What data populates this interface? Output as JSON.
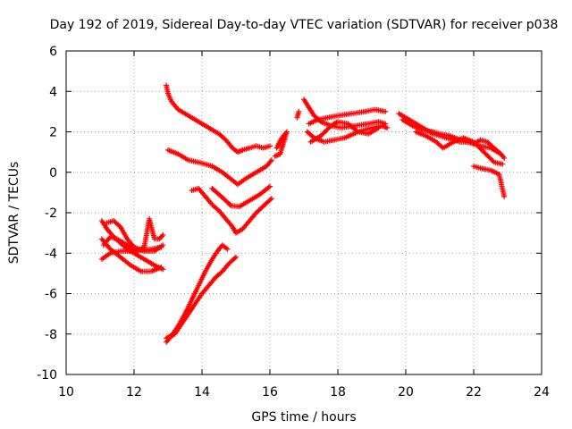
{
  "chart_data": {
    "type": "scatter",
    "title": "Day 192 of 2019, Sidereal Day-to-day VTEC variation (SDTVAR) for receiver p038",
    "xlabel": "GPS time / hours",
    "ylabel": "SDTVAR / TECUs",
    "xlim": [
      10,
      24
    ],
    "ylim": [
      -10,
      6
    ],
    "xticks": [
      10,
      12,
      14,
      16,
      18,
      20,
      22,
      24
    ],
    "yticks": [
      -10,
      -8,
      -6,
      -4,
      -2,
      0,
      2,
      4,
      6
    ],
    "xtick_labels": [
      "10",
      "12",
      "14",
      "16",
      "18",
      "20",
      "22",
      "24"
    ],
    "ytick_labels": [
      "-10",
      "-8",
      "-6",
      "-4",
      "-2",
      "0",
      "2",
      "4",
      "6"
    ],
    "grid": true,
    "marker": "+",
    "color": "#ff0000",
    "series": [
      {
        "points": [
          [
            11.05,
            -2.4
          ],
          [
            11.2,
            -2.8
          ],
          [
            11.4,
            -3.2
          ],
          [
            11.6,
            -3.5
          ],
          [
            11.8,
            -3.8
          ],
          [
            12.0,
            -4.0
          ],
          [
            12.2,
            -4.2
          ],
          [
            12.4,
            -4.4
          ],
          [
            12.6,
            -4.6
          ],
          [
            12.85,
            -4.8
          ]
        ]
      },
      {
        "points": [
          [
            11.05,
            -4.3
          ],
          [
            11.3,
            -4.0
          ],
          [
            11.6,
            -3.9
          ],
          [
            11.9,
            -3.9
          ],
          [
            12.2,
            -3.85
          ],
          [
            12.5,
            -3.8
          ],
          [
            12.8,
            -3.7
          ]
        ]
      },
      {
        "points": [
          [
            11.05,
            -3.3
          ],
          [
            11.3,
            -3.8
          ],
          [
            11.6,
            -4.2
          ],
          [
            11.9,
            -4.6
          ],
          [
            12.2,
            -4.9
          ],
          [
            12.5,
            -4.9
          ],
          [
            12.8,
            -4.7
          ]
        ]
      },
      {
        "points": [
          [
            11.1,
            -3.6
          ],
          [
            11.3,
            -3.2
          ],
          [
            11.5,
            -3.3
          ],
          [
            11.8,
            -3.6
          ],
          [
            12.1,
            -3.9
          ],
          [
            12.3,
            -3.7
          ],
          [
            12.45,
            -2.3
          ],
          [
            12.6,
            -3.3
          ],
          [
            12.75,
            -3.3
          ],
          [
            12.85,
            -3.1
          ]
        ]
      },
      {
        "points": [
          [
            11.2,
            -2.5
          ],
          [
            11.4,
            -2.4
          ],
          [
            11.6,
            -2.7
          ],
          [
            11.8,
            -3.3
          ],
          [
            12.0,
            -3.7
          ],
          [
            12.3,
            -3.9
          ],
          [
            12.6,
            -3.9
          ],
          [
            12.85,
            -3.6
          ]
        ]
      },
      {
        "points": [
          [
            12.95,
            4.3
          ],
          [
            13.0,
            3.9
          ],
          [
            13.1,
            3.5
          ],
          [
            13.3,
            3.1
          ],
          [
            13.6,
            2.8
          ],
          [
            13.9,
            2.5
          ],
          [
            14.2,
            2.2
          ],
          [
            14.5,
            1.9
          ],
          [
            14.7,
            1.6
          ],
          [
            14.9,
            1.2
          ],
          [
            15.05,
            1.0
          ],
          [
            15.2,
            1.1
          ],
          [
            15.4,
            1.2
          ],
          [
            15.6,
            1.3
          ],
          [
            15.8,
            1.2
          ],
          [
            16.0,
            1.3
          ]
        ]
      },
      {
        "points": [
          [
            13.0,
            1.1
          ],
          [
            13.3,
            0.9
          ],
          [
            13.6,
            0.6
          ],
          [
            14.0,
            0.45
          ],
          [
            14.3,
            0.3
          ],
          [
            14.6,
            0.0
          ],
          [
            14.9,
            -0.4
          ],
          [
            15.05,
            -0.6
          ],
          [
            15.3,
            -0.3
          ],
          [
            15.6,
            0.0
          ],
          [
            15.9,
            0.3
          ],
          [
            16.05,
            0.6
          ]
        ]
      },
      {
        "points": [
          [
            13.7,
            -0.9
          ],
          [
            13.9,
            -0.8
          ],
          [
            14.1,
            -1.2
          ],
          [
            14.3,
            -1.6
          ],
          [
            14.5,
            -1.9
          ],
          [
            14.7,
            -2.3
          ],
          [
            14.9,
            -2.7
          ],
          [
            15.0,
            -3.0
          ],
          [
            15.2,
            -2.8
          ],
          [
            15.4,
            -2.4
          ],
          [
            15.6,
            -2.0
          ],
          [
            15.85,
            -1.6
          ],
          [
            16.05,
            -1.3
          ]
        ]
      },
      {
        "points": [
          [
            14.3,
            -0.8
          ],
          [
            14.5,
            -1.1
          ],
          [
            14.7,
            -1.4
          ],
          [
            14.85,
            -1.65
          ],
          [
            15.1,
            -1.7
          ],
          [
            15.4,
            -1.4
          ],
          [
            15.7,
            -1.1
          ],
          [
            16.0,
            -0.7
          ]
        ]
      },
      {
        "points": [
          [
            12.95,
            -8.4
          ],
          [
            13.1,
            -8.1
          ],
          [
            13.3,
            -7.6
          ],
          [
            13.5,
            -7.0
          ],
          [
            13.7,
            -6.3
          ],
          [
            13.9,
            -5.6
          ],
          [
            14.1,
            -4.9
          ],
          [
            14.3,
            -4.3
          ],
          [
            14.5,
            -3.8
          ],
          [
            14.6,
            -3.6
          ],
          [
            14.75,
            -3.8
          ]
        ]
      },
      {
        "points": [
          [
            12.95,
            -8.2
          ],
          [
            13.2,
            -8.0
          ],
          [
            13.4,
            -7.5
          ],
          [
            13.6,
            -7.0
          ],
          [
            13.8,
            -6.5
          ],
          [
            14.0,
            -6.0
          ],
          [
            14.2,
            -5.6
          ],
          [
            14.4,
            -5.2
          ],
          [
            14.6,
            -4.9
          ],
          [
            14.8,
            -4.5
          ],
          [
            15.0,
            -4.2
          ]
        ]
      },
      {
        "points": [
          [
            16.2,
            1.2
          ],
          [
            16.35,
            1.7
          ],
          [
            16.5,
            2.0
          ],
          [
            16.3,
            0.9
          ],
          [
            16.15,
            0.8
          ]
        ]
      },
      {
        "points": [
          [
            16.8,
            2.7
          ],
          [
            16.85,
            3.0
          ]
        ]
      },
      {
        "points": [
          [
            17.0,
            3.6
          ],
          [
            17.15,
            3.2
          ],
          [
            17.3,
            2.8
          ],
          [
            17.5,
            2.5
          ],
          [
            17.8,
            2.3
          ],
          [
            18.1,
            2.2
          ],
          [
            18.5,
            2.3
          ],
          [
            18.9,
            2.4
          ],
          [
            19.2,
            2.5
          ],
          [
            19.4,
            2.4
          ]
        ]
      },
      {
        "points": [
          [
            17.1,
            2.0
          ],
          [
            17.3,
            1.7
          ],
          [
            17.6,
            1.5
          ],
          [
            17.9,
            1.6
          ],
          [
            18.2,
            1.7
          ],
          [
            18.6,
            2.0
          ],
          [
            19.0,
            2.2
          ],
          [
            19.3,
            2.3
          ],
          [
            19.45,
            2.2
          ]
        ]
      },
      {
        "points": [
          [
            17.15,
            2.4
          ],
          [
            17.4,
            2.6
          ],
          [
            17.7,
            2.7
          ],
          [
            18.0,
            2.8
          ],
          [
            18.4,
            2.9
          ],
          [
            18.8,
            3.0
          ],
          [
            19.1,
            3.1
          ],
          [
            19.4,
            3.0
          ]
        ]
      },
      {
        "points": [
          [
            17.2,
            1.5
          ],
          [
            17.5,
            1.8
          ],
          [
            17.8,
            2.3
          ],
          [
            18.0,
            2.5
          ],
          [
            18.3,
            2.4
          ],
          [
            18.6,
            2.0
          ],
          [
            18.9,
            1.9
          ],
          [
            19.2,
            2.2
          ]
        ]
      },
      {
        "points": [
          [
            19.8,
            2.9
          ],
          [
            20.0,
            2.7
          ],
          [
            20.2,
            2.5
          ],
          [
            20.4,
            2.3
          ],
          [
            20.6,
            2.1
          ],
          [
            20.8,
            1.9
          ],
          [
            21.0,
            1.8
          ],
          [
            21.2,
            1.7
          ],
          [
            21.4,
            1.6
          ],
          [
            21.6,
            1.5
          ],
          [
            21.8,
            1.5
          ],
          [
            22.0,
            1.4
          ],
          [
            22.2,
            1.6
          ],
          [
            22.4,
            1.5
          ],
          [
            22.6,
            1.2
          ],
          [
            22.8,
            0.9
          ],
          [
            22.9,
            0.7
          ]
        ]
      },
      {
        "points": [
          [
            19.9,
            2.6
          ],
          [
            20.2,
            2.3
          ],
          [
            20.5,
            2.1
          ],
          [
            20.8,
            2.0
          ],
          [
            21.0,
            1.9
          ],
          [
            21.3,
            1.8
          ],
          [
            21.6,
            1.6
          ],
          [
            21.9,
            1.5
          ],
          [
            22.2,
            1.3
          ],
          [
            22.5,
            1.2
          ],
          [
            22.8,
            0.9
          ]
        ]
      },
      {
        "points": [
          [
            20.3,
            2.0
          ],
          [
            20.6,
            1.8
          ],
          [
            20.9,
            1.5
          ],
          [
            21.1,
            1.2
          ],
          [
            21.4,
            1.5
          ],
          [
            21.7,
            1.7
          ],
          [
            22.0,
            1.5
          ],
          [
            22.3,
            1.0
          ],
          [
            22.6,
            0.5
          ],
          [
            22.85,
            0.4
          ]
        ]
      },
      {
        "points": [
          [
            22.0,
            0.3
          ],
          [
            22.2,
            0.2
          ],
          [
            22.5,
            0.1
          ],
          [
            22.75,
            -0.1
          ],
          [
            22.9,
            -1.2
          ]
        ]
      }
    ]
  }
}
